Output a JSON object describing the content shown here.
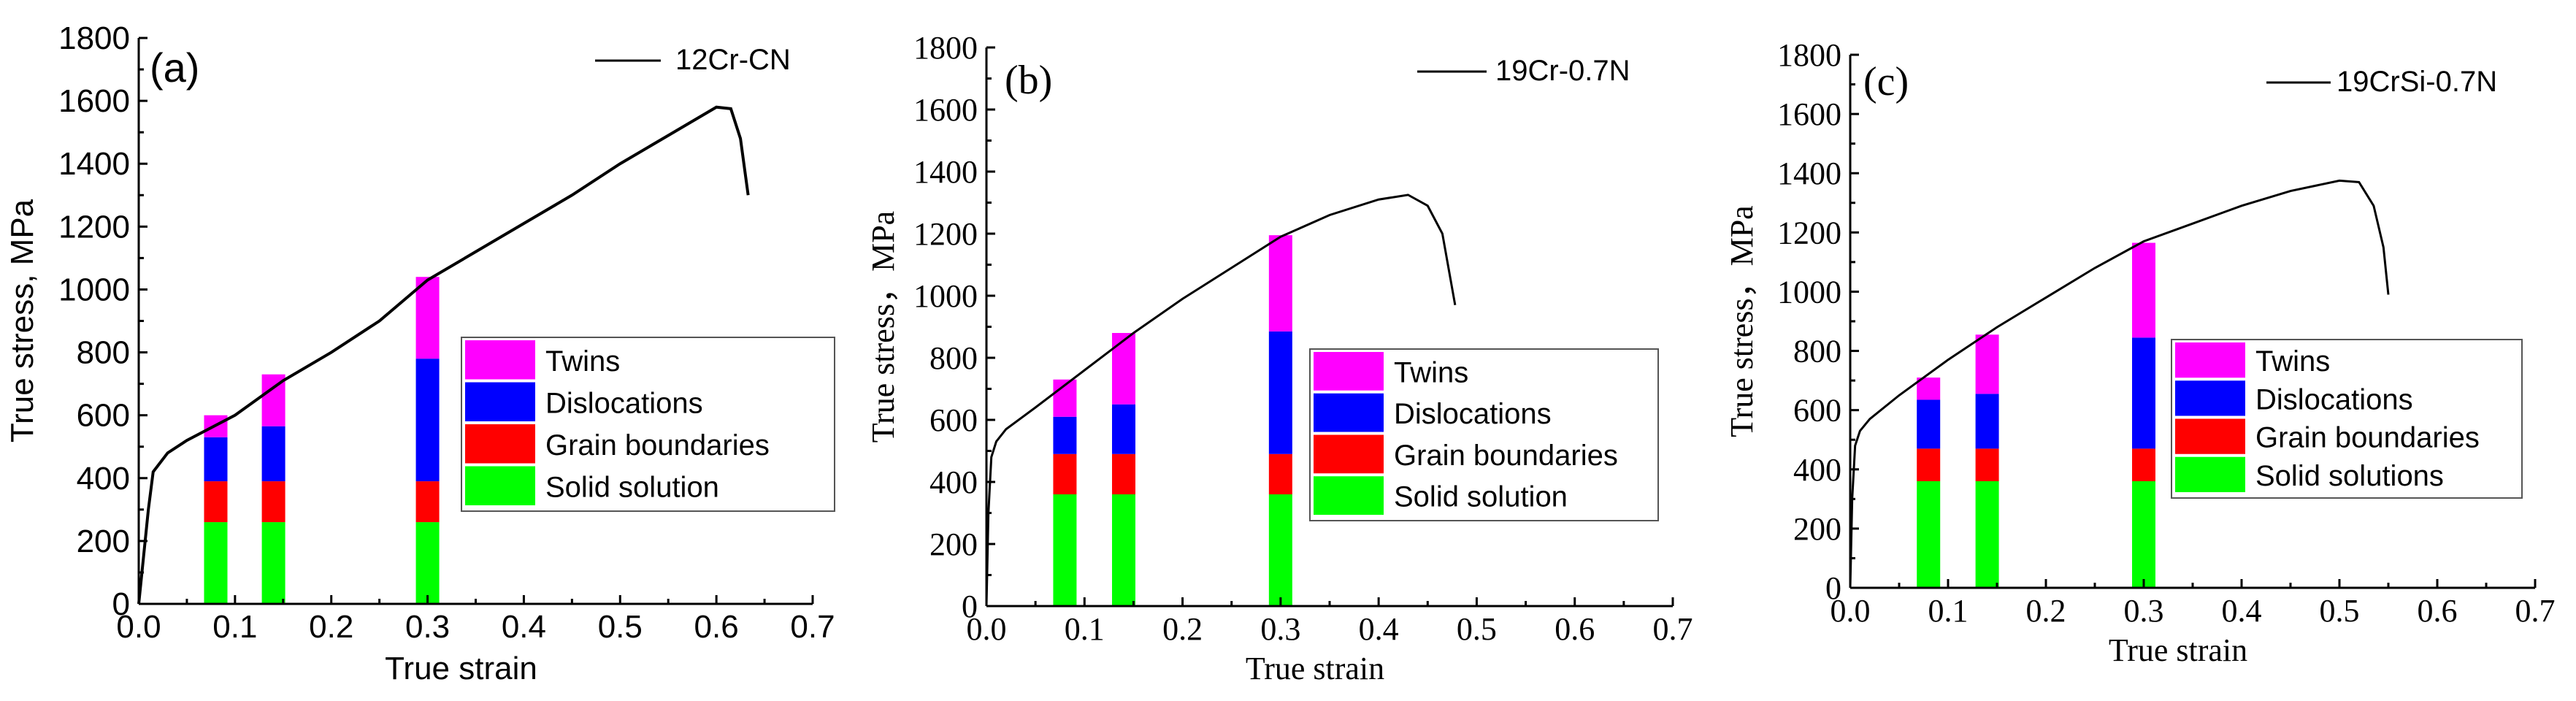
{
  "colors": {
    "solid_solution": "#00ff00",
    "grain_boundaries": "#ff0000",
    "dislocations": "#0000ff",
    "twins": "#ff00ff",
    "curve": "#000000"
  },
  "chart_data": [
    {
      "type": "bar+line",
      "panel_label": "(a)",
      "xlabel": "True strain",
      "ylabel": "True stress, MPa",
      "xlim": [
        0.0,
        0.7
      ],
      "ylim": [
        0,
        1800
      ],
      "x_ticks": [
        "0.0",
        "0.1",
        "0.2",
        "0.3",
        "0.4",
        "0.5",
        "0.6",
        "0.7"
      ],
      "y_ticks": [
        "0",
        "200",
        "400",
        "600",
        "800",
        "1000",
        "1200",
        "1400",
        "1600",
        "1800"
      ],
      "curve_legend": "12Cr-CN",
      "legend_labels": [
        "Twins",
        "Dislocations",
        "Grain boundaries",
        "Solid solution"
      ],
      "curve": [
        [
          0.0,
          0
        ],
        [
          0.005,
          150
        ],
        [
          0.01,
          300
        ],
        [
          0.015,
          420
        ],
        [
          0.03,
          480
        ],
        [
          0.05,
          520
        ],
        [
          0.1,
          600
        ],
        [
          0.15,
          710
        ],
        [
          0.2,
          800
        ],
        [
          0.25,
          900
        ],
        [
          0.3,
          1030
        ],
        [
          0.35,
          1120
        ],
        [
          0.4,
          1210
        ],
        [
          0.45,
          1300
        ],
        [
          0.5,
          1400
        ],
        [
          0.55,
          1490
        ],
        [
          0.6,
          1580
        ],
        [
          0.615,
          1575
        ],
        [
          0.625,
          1480
        ],
        [
          0.633,
          1300
        ]
      ],
      "bars": [
        {
          "x": 0.08,
          "solid_solution": 260,
          "grain_boundaries": 130,
          "dislocations": 140,
          "twins": 70
        },
        {
          "x": 0.14,
          "solid_solution": 260,
          "grain_boundaries": 130,
          "dislocations": 175,
          "twins": 165
        },
        {
          "x": 0.3,
          "solid_solution": 260,
          "grain_boundaries": 130,
          "dislocations": 390,
          "twins": 260
        }
      ]
    },
    {
      "type": "bar+line",
      "panel_label": "(b)",
      "xlabel": "True strain",
      "ylabel": "True stress，MPa",
      "xlim": [
        0.0,
        0.7
      ],
      "ylim": [
        0,
        1800
      ],
      "x_ticks": [
        "0.0",
        "0.1",
        "0.2",
        "0.3",
        "0.4",
        "0.5",
        "0.6",
        "0.7"
      ],
      "y_ticks": [
        "0",
        "200",
        "400",
        "600",
        "800",
        "1000",
        "1200",
        "1400",
        "1600",
        "1800"
      ],
      "curve_legend": "19Cr-0.7N",
      "legend_labels": [
        "Twins",
        "Dislocations",
        "Grain boundaries",
        "Solid solution"
      ],
      "curve": [
        [
          0.0,
          0
        ],
        [
          0.002,
          300
        ],
        [
          0.005,
          480
        ],
        [
          0.01,
          530
        ],
        [
          0.02,
          570
        ],
        [
          0.05,
          640
        ],
        [
          0.1,
          760
        ],
        [
          0.15,
          880
        ],
        [
          0.2,
          990
        ],
        [
          0.25,
          1090
        ],
        [
          0.3,
          1190
        ],
        [
          0.35,
          1260
        ],
        [
          0.4,
          1310
        ],
        [
          0.43,
          1325
        ],
        [
          0.45,
          1290
        ],
        [
          0.465,
          1200
        ],
        [
          0.478,
          970
        ]
      ],
      "bars": [
        {
          "x": 0.08,
          "solid_solution": 360,
          "grain_boundaries": 130,
          "dislocations": 120,
          "twins": 120
        },
        {
          "x": 0.14,
          "solid_solution": 360,
          "grain_boundaries": 130,
          "dislocations": 160,
          "twins": 230
        },
        {
          "x": 0.3,
          "solid_solution": 360,
          "grain_boundaries": 130,
          "dislocations": 395,
          "twins": 310
        }
      ]
    },
    {
      "type": "bar+line",
      "panel_label": "(c)",
      "xlabel": "True strain",
      "ylabel": "True stress，MPa",
      "xlim": [
        0.0,
        0.7
      ],
      "ylim": [
        0,
        1800
      ],
      "x_ticks": [
        "0.0",
        "0.1",
        "0.2",
        "0.3",
        "0.4",
        "0.5",
        "0.6",
        "0.7"
      ],
      "y_ticks": [
        "0",
        "200",
        "400",
        "600",
        "800",
        "1000",
        "1200",
        "1400",
        "1600",
        "1800"
      ],
      "curve_legend": "19CrSi-0.7N",
      "legend_labels": [
        "Twins",
        "Dislocations",
        "Grain boundaries",
        "Solid solutions"
      ],
      "curve": [
        [
          0.0,
          0
        ],
        [
          0.002,
          300
        ],
        [
          0.005,
          480
        ],
        [
          0.01,
          530
        ],
        [
          0.02,
          570
        ],
        [
          0.05,
          650
        ],
        [
          0.1,
          770
        ],
        [
          0.15,
          880
        ],
        [
          0.2,
          980
        ],
        [
          0.25,
          1080
        ],
        [
          0.3,
          1170
        ],
        [
          0.35,
          1230
        ],
        [
          0.4,
          1290
        ],
        [
          0.45,
          1340
        ],
        [
          0.5,
          1375
        ],
        [
          0.52,
          1370
        ],
        [
          0.535,
          1290
        ],
        [
          0.545,
          1150
        ],
        [
          0.55,
          990
        ]
      ],
      "bars": [
        {
          "x": 0.08,
          "solid_solution": 360,
          "grain_boundaries": 110,
          "dislocations": 165,
          "twins": 75
        },
        {
          "x": 0.14,
          "solid_solution": 360,
          "grain_boundaries": 110,
          "dislocations": 185,
          "twins": 200
        },
        {
          "x": 0.3,
          "solid_solution": 360,
          "grain_boundaries": 110,
          "dislocations": 375,
          "twins": 320
        }
      ]
    }
  ]
}
